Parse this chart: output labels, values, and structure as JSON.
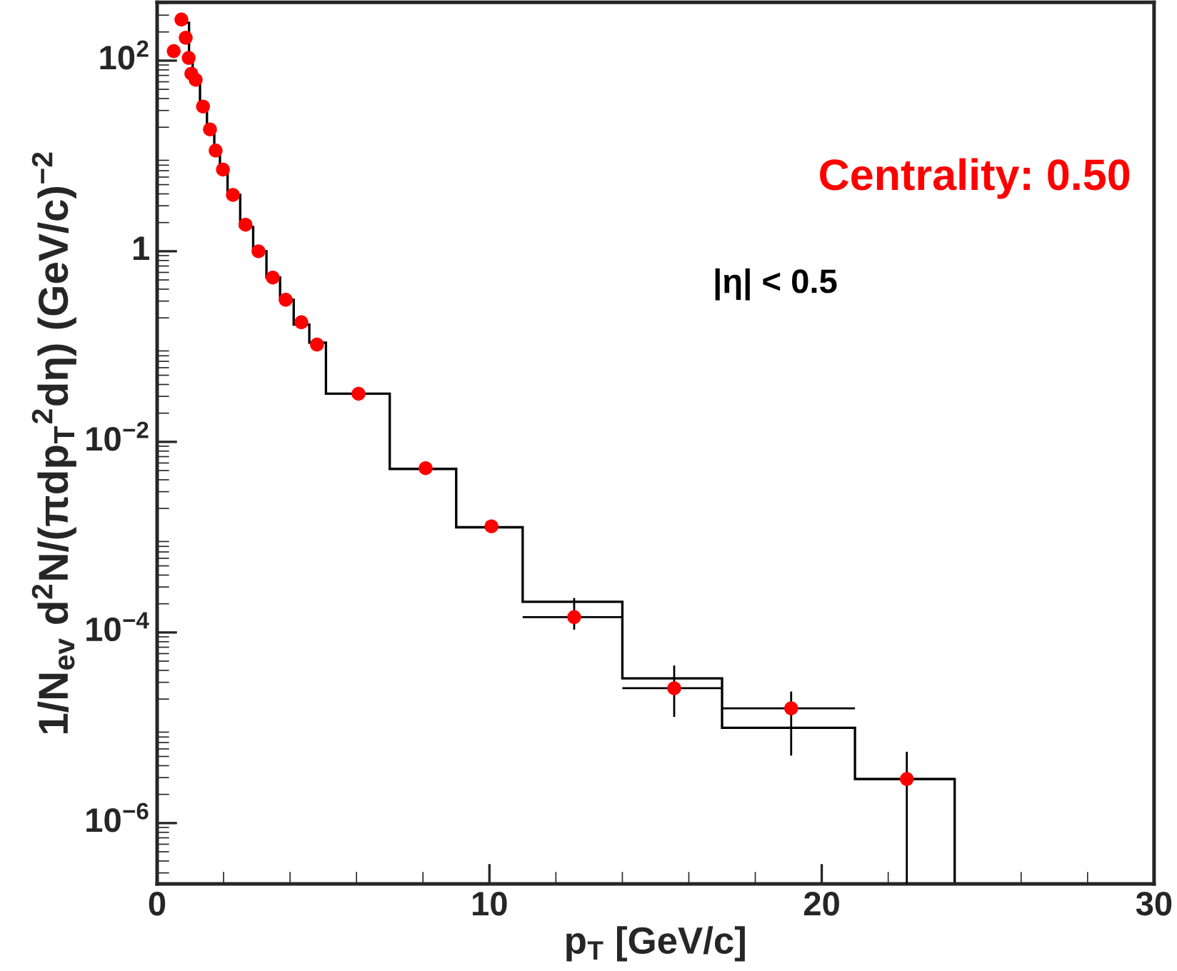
{
  "chart_data": {
    "type": "histogram",
    "xlabel": "p$_{T}$ [GeV/c]",
    "ylabel": "1/N$_{ev}$ d$^{2}$N/(πdp$_{T}$$^{2}$dη) (GeV/c)$^{−2}$",
    "annotations": [
      "Centrality: 0.50",
      "|η| < 0.5"
    ],
    "log": "y",
    "grid": false,
    "legend": false,
    "marker": "circle",
    "xlim": [
      0,
      30
    ],
    "xticks": [
      0,
      10,
      20,
      30
    ],
    "ylim": [
      2.3e-07,
      410
    ],
    "yticks": [
      {
        "value": 100,
        "label": "10$^{2}$"
      },
      1,
      {
        "value": 0.01,
        "label": "10$^{−2}$"
      },
      {
        "value": 0.0001,
        "label": "10$^{−4}$"
      },
      {
        "value": 1e-06,
        "label": "10$^{−6}$"
      }
    ],
    "color": "#000000",
    "bins": [
      0.79,
      0.96,
      1.07,
      1.29,
      1.5,
      1.72,
      1.89,
      2.12,
      2.5,
      2.89,
      3.29,
      3.7,
      4.11,
      4.58,
      5.08,
      7,
      9,
      11,
      14,
      17,
      21,
      24
    ],
    "values": [
      250,
      107,
      66,
      35,
      20,
      11.8,
      7.2,
      3.9,
      1.8,
      1.0,
      0.53,
      0.31,
      0.17,
      0.11,
      0.032,
      0.0052,
      0.00127,
      0.00021,
      3.3e-05,
      1e-05,
      2.9e-06
    ],
    "series": [
      {
        "type": "scatter",
        "color": "#ff0000",
        "x": [
          0.5,
          0.73,
          0.86,
          0.95,
          1.03,
          1.16,
          1.38,
          1.59,
          1.76,
          1.98,
          2.28,
          2.66,
          3.05,
          3.48,
          3.87,
          4.34,
          4.81,
          6.06,
          8.08,
          10.06,
          12.55,
          15.56,
          19.08,
          22.56
        ],
        "values": [
          126,
          270,
          174,
          107,
          73,
          63,
          33,
          19,
          11.4,
          7.2,
          3.9,
          1.9,
          1.0,
          0.53,
          0.31,
          0.18,
          0.105,
          0.032,
          0.0053,
          0.0013,
          0.000145,
          2.6e-05,
          1.6e-05,
          2.9e-06
        ],
        "errors": [
          null,
          null,
          null,
          null,
          null,
          null,
          null,
          null,
          null,
          null,
          null,
          null,
          null,
          null,
          null,
          null,
          null,
          null,
          null,
          null,
          [
            0.000107,
            0.00023
          ],
          [
            1.3e-05,
            4.5e-05
          ],
          [
            5.1e-06,
            2.4e-05
          ],
          [
            2.3e-07,
            5.6e-06
          ]
        ],
        "xerrors": [
          null,
          null,
          null,
          null,
          null,
          null,
          null,
          null,
          null,
          null,
          null,
          null,
          null,
          null,
          null,
          null,
          null,
          null,
          null,
          null,
          [
            11,
            14
          ],
          [
            14,
            17
          ],
          [
            17,
            21
          ],
          [
            21,
            24
          ]
        ]
      }
    ]
  }
}
